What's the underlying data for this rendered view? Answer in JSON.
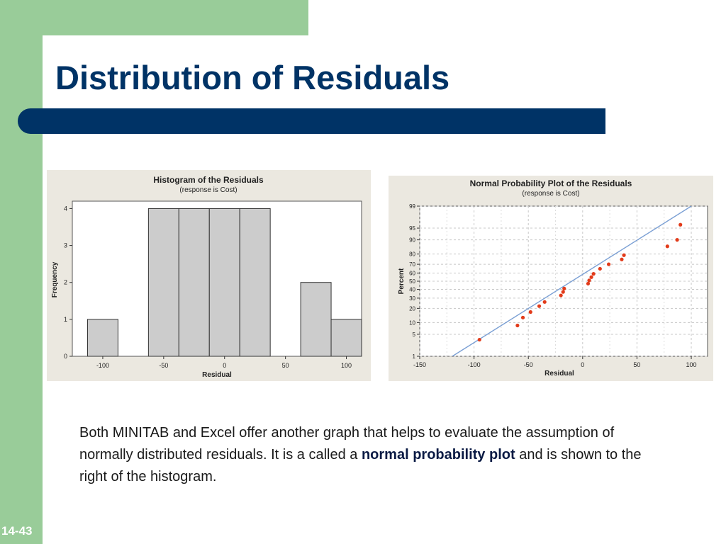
{
  "slide": {
    "title": "Distribution of Residuals",
    "slide_number": "14-43",
    "body": {
      "part1": "Both MINITAB and Excel offer another graph that helps to evaluate the assumption of normally distributed residuals. It is a called a ",
      "bold1": "normal probability plot",
      "part2": " and is shown to the right of the histogram."
    }
  },
  "colors": {
    "accent_green": "#99cc99",
    "title_navy": "#003366",
    "bar_fill": "#cccccc",
    "point_red": "#e23b1a",
    "fit_line_blue": "#7a9fd4"
  },
  "chart_data": [
    {
      "type": "bar",
      "title": "Histogram of the Residuals",
      "subtitle": "(response is Cost)",
      "xlabel": "Residual",
      "ylabel": "Frequency",
      "x_ticks": [
        -100,
        -50,
        0,
        50,
        100
      ],
      "y_ticks": [
        0,
        1,
        2,
        3,
        4
      ],
      "xlim": [
        -125,
        112.5
      ],
      "ylim": [
        0,
        4.2
      ],
      "bin_width": 25,
      "bins": [
        {
          "center": -100,
          "count": 1
        },
        {
          "center": -75,
          "count": 0
        },
        {
          "center": -50,
          "count": 4
        },
        {
          "center": -25,
          "count": 4
        },
        {
          "center": 0,
          "count": 4
        },
        {
          "center": 25,
          "count": 4
        },
        {
          "center": 50,
          "count": 0
        },
        {
          "center": 75,
          "count": 2
        },
        {
          "center": 100,
          "count": 1
        }
      ],
      "grid": false
    },
    {
      "type": "scatter",
      "title": "Normal Probability Plot of the Residuals",
      "subtitle": "(response is Cost)",
      "xlabel": "Residual",
      "ylabel": "Percent",
      "x_ticks": [
        -150,
        -100,
        -50,
        0,
        50,
        100
      ],
      "y_ticks": [
        1,
        5,
        10,
        20,
        30,
        40,
        50,
        60,
        70,
        80,
        90,
        95,
        99
      ],
      "xlim": [
        -150,
        115
      ],
      "ylim": [
        1,
        99
      ],
      "y_scale": "normal-probability",
      "grid": true,
      "points": [
        {
          "x": -95,
          "y": 3.5
        },
        {
          "x": -60,
          "y": 8.5
        },
        {
          "x": -55,
          "y": 13
        },
        {
          "x": -48,
          "y": 17
        },
        {
          "x": -40,
          "y": 22
        },
        {
          "x": -35,
          "y": 26
        },
        {
          "x": -20,
          "y": 33
        },
        {
          "x": -18,
          "y": 37
        },
        {
          "x": -17,
          "y": 41
        },
        {
          "x": 5,
          "y": 47
        },
        {
          "x": 6,
          "y": 51
        },
        {
          "x": 8,
          "y": 55
        },
        {
          "x": 10,
          "y": 59
        },
        {
          "x": 16,
          "y": 65
        },
        {
          "x": 24,
          "y": 70
        },
        {
          "x": 36,
          "y": 75
        },
        {
          "x": 38,
          "y": 79
        },
        {
          "x": 78,
          "y": 86
        },
        {
          "x": 87,
          "y": 90
        },
        {
          "x": 90,
          "y": 96
        }
      ],
      "fit_line": [
        {
          "x": -120,
          "y": 1
        },
        {
          "x": 100,
          "y": 99
        }
      ]
    }
  ]
}
